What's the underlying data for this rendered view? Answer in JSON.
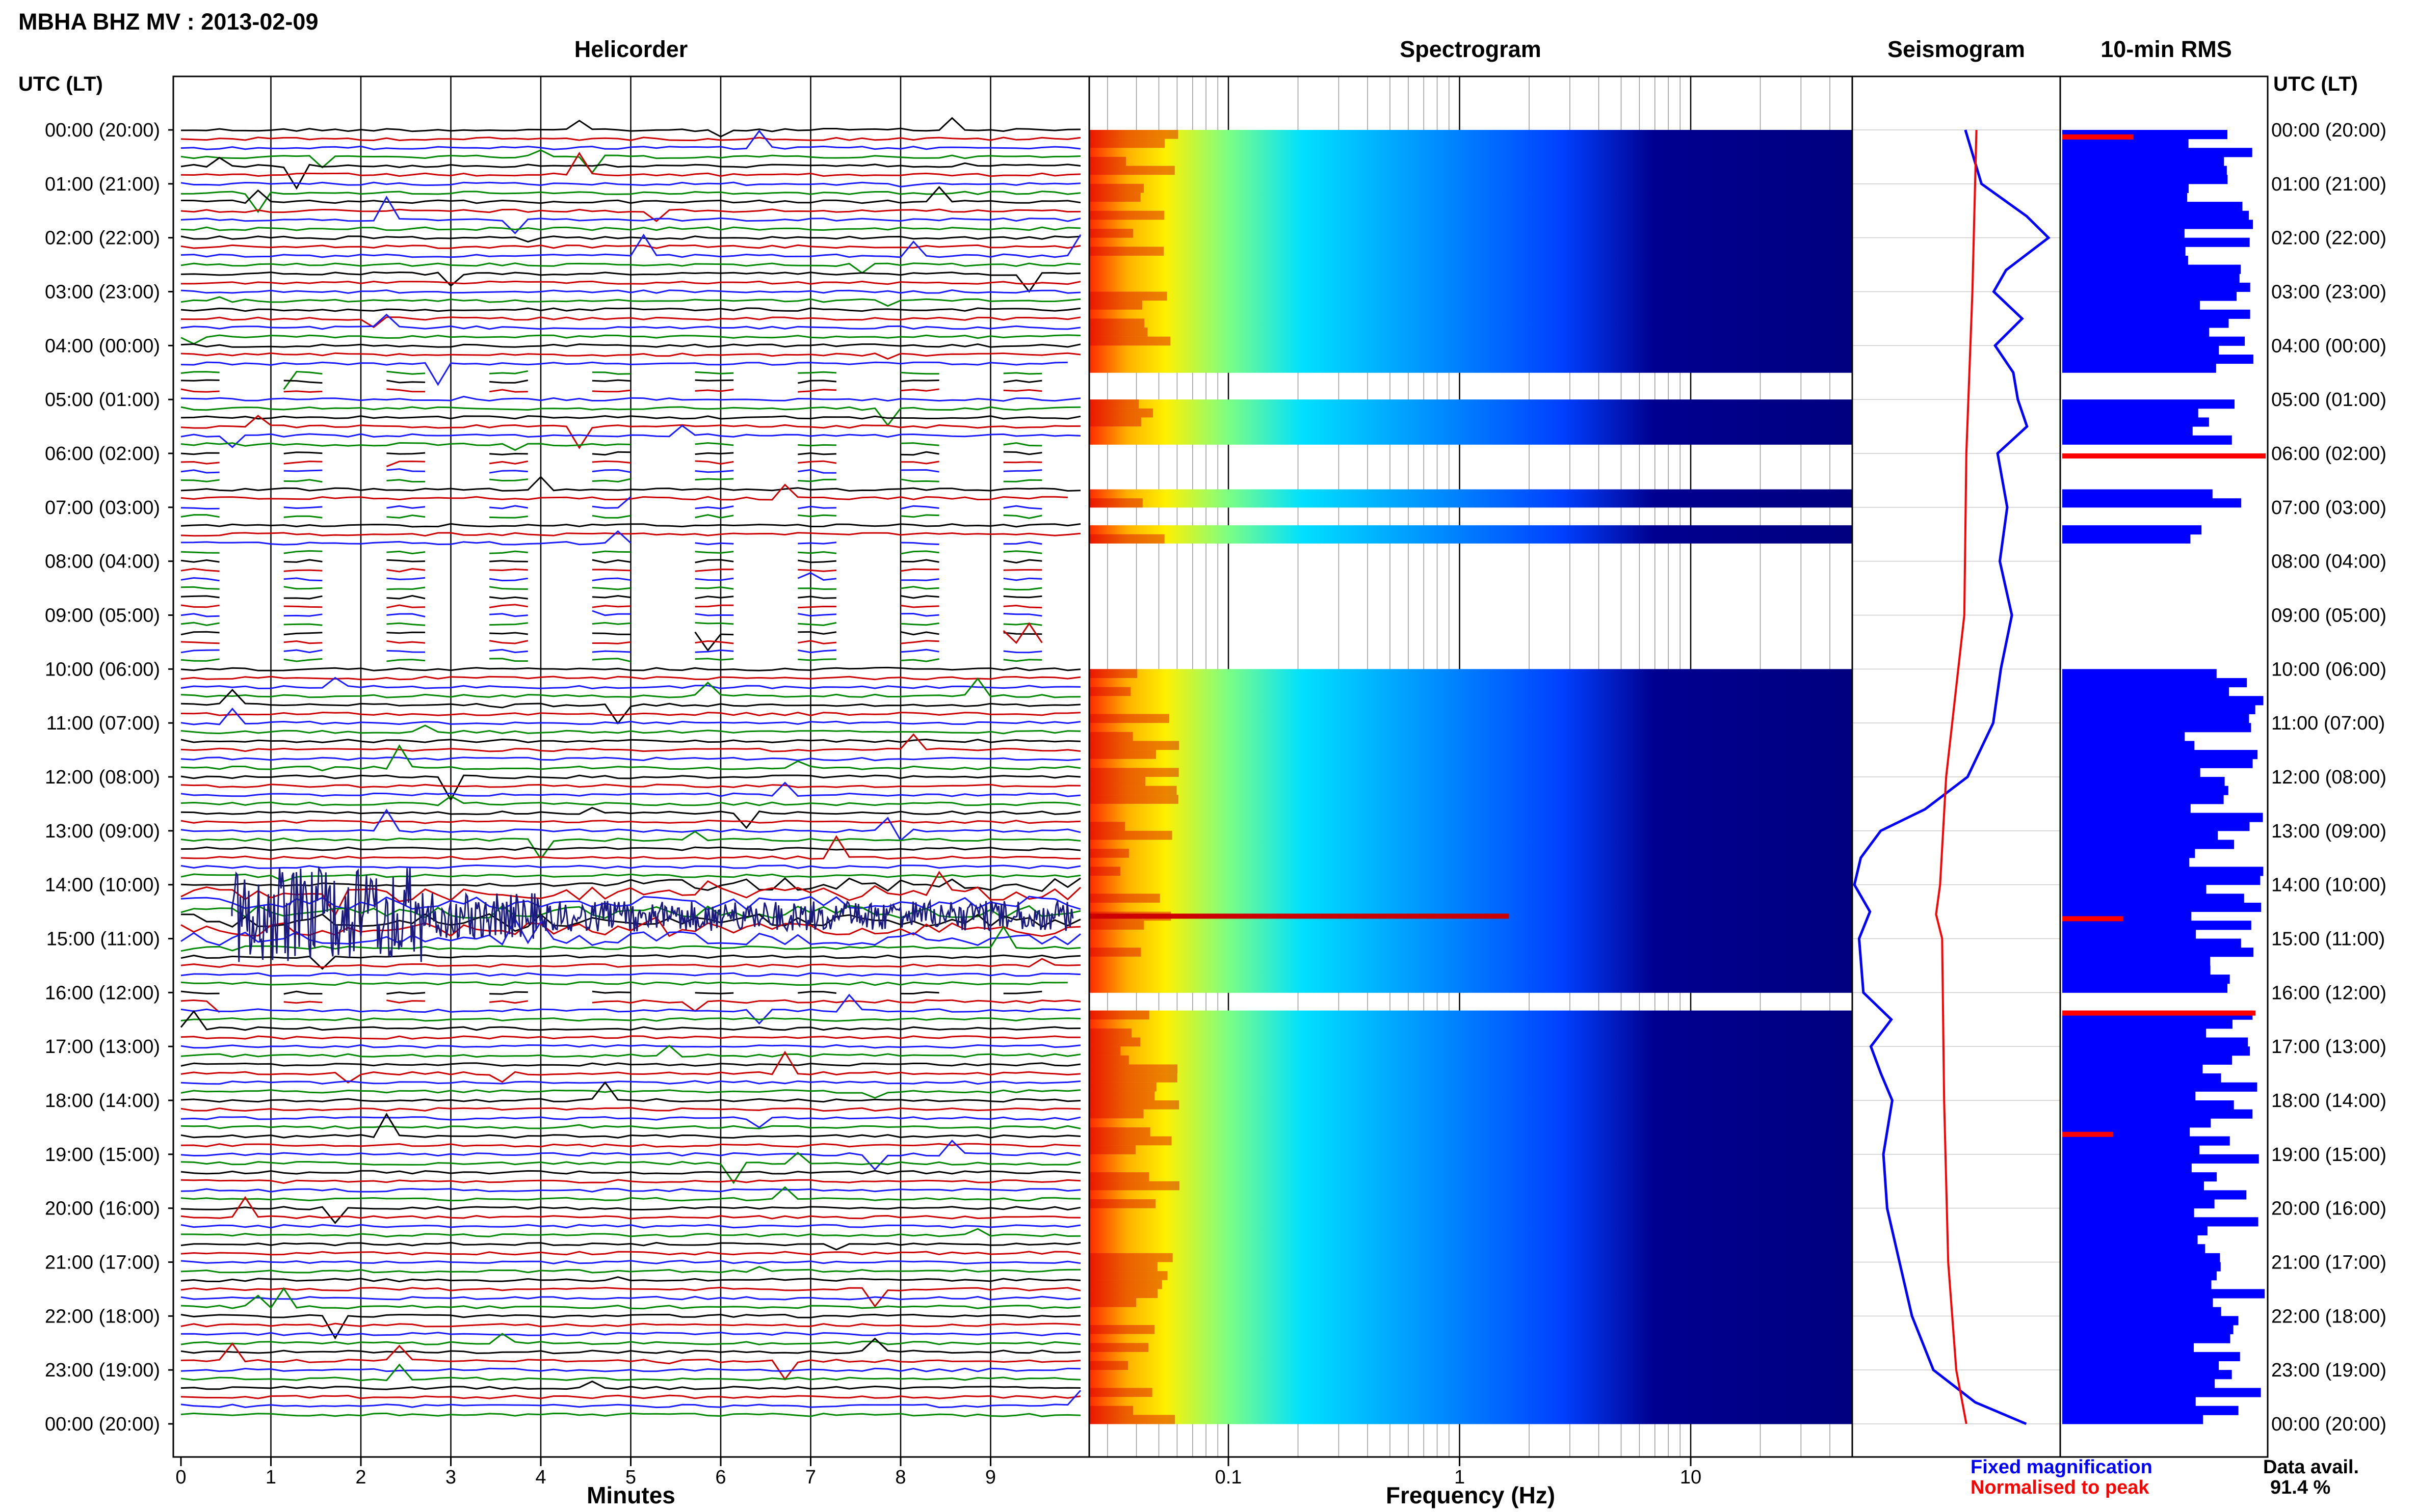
{
  "header": {
    "title": "MBHA BHZ MV : 2013-02-09"
  },
  "panels": {
    "helicorder": "Helicorder",
    "spectrogram": "Spectrogram",
    "seismogram": "Seismogram",
    "rms": "10-min RMS"
  },
  "time_axis": {
    "label_left": "UTC (LT)",
    "label_right": "UTC (LT)",
    "ticks": [
      "00:00 (20:00)",
      "01:00 (21:00)",
      "02:00 (22:00)",
      "03:00 (23:00)",
      "04:00 (00:00)",
      "05:00 (01:00)",
      "06:00 (02:00)",
      "07:00 (03:00)",
      "08:00 (04:00)",
      "09:00 (05:00)",
      "10:00 (06:00)",
      "11:00 (07:00)",
      "12:00 (08:00)",
      "13:00 (09:00)",
      "14:00 (10:00)",
      "15:00 (11:00)",
      "16:00 (12:00)",
      "17:00 (13:00)",
      "18:00 (14:00)",
      "19:00 (15:00)",
      "20:00 (16:00)",
      "21:00 (17:00)",
      "22:00 (18:00)",
      "23:00 (19:00)",
      "00:00 (20:00)"
    ]
  },
  "helicorder_axis": {
    "xlabel": "Minutes",
    "ticks": [
      "0",
      "1",
      "2",
      "3",
      "4",
      "5",
      "6",
      "7",
      "8",
      "9"
    ]
  },
  "spectrogram_axis": {
    "xlabel": "Frequency (Hz)",
    "ticks": [
      "0.1",
      "1",
      "10"
    ]
  },
  "legend": {
    "fixed": "Fixed magnification",
    "normalised": "Normalised to peak",
    "fixed_color": "#0000ff",
    "normalised_color": "#ff0000"
  },
  "availability": {
    "label": "Data avail.",
    "value": "91.4 %"
  },
  "colors": {
    "trace_black": "#000000",
    "trace_red": "#cc0000",
    "trace_blue": "#1a1aff",
    "trace_green": "#008800",
    "rms_blue": "#0000ff",
    "rms_red": "#ff0000",
    "spectro_low": "#000080"
  },
  "chart_data": {
    "type": "heatmap",
    "title": "MBHA BHZ MV : 2013-02-09",
    "date": "2013-02-09",
    "time_range_utc": [
      "00:00",
      "24:00"
    ],
    "helicorder": {
      "xlabel": "Minutes",
      "xlim": [
        0,
        10
      ],
      "rows": 144,
      "event_window_utc": [
        "14:05",
        "15:10"
      ]
    },
    "spectrogram": {
      "xlabel": "Frequency (Hz)",
      "xscale": "log",
      "xlim": [
        0.025,
        50
      ],
      "data_gaps_utc": [
        [
          "04:30",
          "05:00"
        ],
        [
          "05:55",
          "06:40"
        ],
        [
          "07:00",
          "07:20"
        ],
        [
          "07:45",
          "10:00"
        ],
        [
          "16:00",
          "16:15"
        ]
      ]
    },
    "seismogram": {
      "series": [
        {
          "name": "Fixed magnification",
          "color": "#0000ff"
        },
        {
          "name": "Normalised to peak",
          "color": "#ff0000"
        }
      ]
    },
    "rms_10min": {
      "interval_minutes": 10,
      "normalised_peaks_utc": [
        "00:05",
        "06:00",
        "14:35",
        "16:20",
        "18:35"
      ]
    },
    "data_availability_percent": 91.4
  }
}
